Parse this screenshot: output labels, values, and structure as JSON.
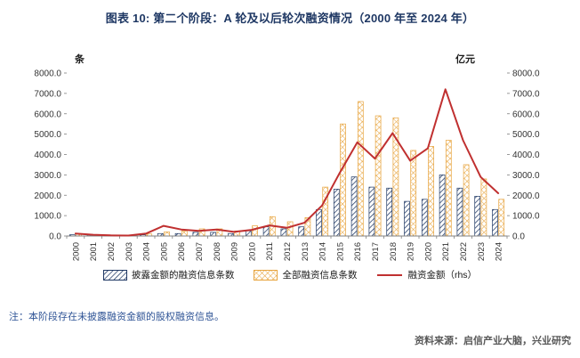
{
  "title": "图表 10: 第二个阶段：A 轮及以后轮次融资情况（2000 年至 2024 年）",
  "note": "注：本阶段存在未披露融资金额的股权融资信息。",
  "source": "资料来源：启信产业大脑，兴业研究",
  "chart_data": {
    "type": "bar",
    "subtype": "grouped-bars-with-line",
    "left_axis_label": "条",
    "right_axis_label": "亿元",
    "left_ylim": [
      0,
      8000
    ],
    "right_ylim": [
      0,
      8000
    ],
    "tick_step": 1000,
    "tick_format": "one-decimal",
    "grid": false,
    "legend_position": "bottom",
    "categories": [
      "2000",
      "2001",
      "2002",
      "2003",
      "2004",
      "2005",
      "2006",
      "2007",
      "2008",
      "2009",
      "2010",
      "2011",
      "2012",
      "2013",
      "2014",
      "2015",
      "2016",
      "2017",
      "2018",
      "2019",
      "2020",
      "2021",
      "2022",
      "2023",
      "2024"
    ],
    "series": [
      {
        "name": "披露金额的融资信息条数",
        "type": "bar",
        "axis": "left",
        "style": "diagonal-hatch",
        "color": "#1F3864",
        "values": [
          60,
          50,
          30,
          30,
          60,
          120,
          120,
          180,
          180,
          120,
          250,
          450,
          350,
          450,
          1300,
          2300,
          2900,
          2400,
          2350,
          1700,
          1800,
          3000,
          2350,
          1950,
          1300
        ]
      },
      {
        "name": "全部融资信息条数",
        "type": "bar",
        "axis": "left",
        "style": "cross-hatch",
        "color": "#E7A33C",
        "values": [
          90,
          70,
          40,
          50,
          100,
          200,
          250,
          350,
          350,
          250,
          500,
          950,
          700,
          900,
          2400,
          5500,
          6600,
          5900,
          5800,
          4200,
          4400,
          4700,
          3500,
          2800,
          1800
        ]
      },
      {
        "name": "融资金额（rhs）",
        "type": "line",
        "axis": "right",
        "color": "#C03030",
        "values": [
          120,
          60,
          30,
          20,
          120,
          500,
          320,
          250,
          320,
          200,
          300,
          520,
          400,
          650,
          1500,
          3100,
          4600,
          3800,
          5050,
          3700,
          4300,
          7200,
          4700,
          2900,
          2100
        ]
      }
    ]
  }
}
